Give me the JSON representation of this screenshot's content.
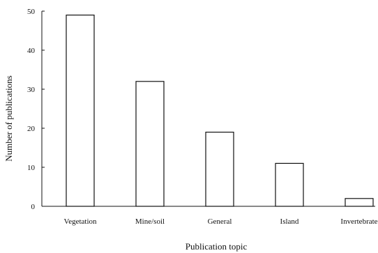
{
  "chart_data": {
    "type": "bar",
    "title": "",
    "xlabel": "Publication topic",
    "ylabel": "Number of publications",
    "categories": [
      "Vegetation",
      "Mine/soil",
      "General",
      "Island",
      "Invertebrate"
    ],
    "values": [
      49,
      32,
      19,
      11,
      2
    ],
    "ylim": [
      0,
      50
    ],
    "yticks": [
      "0",
      "10",
      "20",
      "30",
      "40",
      "50"
    ],
    "grid": false,
    "legend": "none"
  }
}
